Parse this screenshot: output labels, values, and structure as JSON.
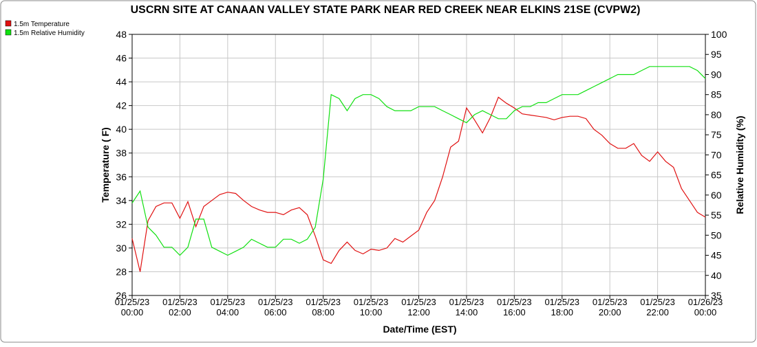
{
  "chart_data": {
    "type": "line",
    "title": "USCRN SITE AT CANAAN VALLEY STATE PARK NEAR RED CREEK NEAR ELKINS 21SE (CVPW2)",
    "xlabel": "Date/Time (EST)",
    "ylabel": "Temperature ( F)",
    "y2label": "Relative Humidity (%)",
    "x": [
      "01/25/23 00:00",
      "01/25/23 00:20",
      "01/25/23 00:40",
      "01/25/23 01:00",
      "01/25/23 01:20",
      "01/25/23 01:40",
      "01/25/23 02:00",
      "01/25/23 02:20",
      "01/25/23 02:40",
      "01/25/23 03:00",
      "01/25/23 03:20",
      "01/25/23 03:40",
      "01/25/23 04:00",
      "01/25/23 04:20",
      "01/25/23 04:40",
      "01/25/23 05:00",
      "01/25/23 05:20",
      "01/25/23 05:40",
      "01/25/23 06:00",
      "01/25/23 06:20",
      "01/25/23 06:40",
      "01/25/23 07:00",
      "01/25/23 07:20",
      "01/25/23 07:40",
      "01/25/23 08:00",
      "01/25/23 08:20",
      "01/25/23 08:40",
      "01/25/23 09:00",
      "01/25/23 09:20",
      "01/25/23 09:40",
      "01/25/23 10:00",
      "01/25/23 10:20",
      "01/25/23 10:40",
      "01/25/23 11:00",
      "01/25/23 11:20",
      "01/25/23 11:40",
      "01/25/23 12:00",
      "01/25/23 12:20",
      "01/25/23 12:40",
      "01/25/23 13:00",
      "01/25/23 13:20",
      "01/25/23 13:40",
      "01/25/23 14:00",
      "01/25/23 14:20",
      "01/25/23 14:40",
      "01/25/23 15:00",
      "01/25/23 15:20",
      "01/25/23 15:40",
      "01/25/23 16:00",
      "01/25/23 16:20",
      "01/25/23 16:40",
      "01/25/23 17:00",
      "01/25/23 17:20",
      "01/25/23 17:40",
      "01/25/23 18:00",
      "01/25/23 18:20",
      "01/25/23 18:40",
      "01/25/23 19:00",
      "01/25/23 19:20",
      "01/25/23 19:40",
      "01/25/23 20:00",
      "01/25/23 20:20",
      "01/25/23 20:40",
      "01/25/23 21:00",
      "01/25/23 21:20",
      "01/25/23 21:40",
      "01/25/23 22:00",
      "01/25/23 22:20",
      "01/25/23 22:40",
      "01/25/23 23:00",
      "01/25/23 23:20",
      "01/25/23 23:40",
      "01/26/23 00:00"
    ],
    "series": [
      {
        "name": "1.5m Temperature",
        "color": "#e01010",
        "values": [
          30.8,
          28.0,
          32.3,
          33.5,
          33.8,
          33.8,
          32.5,
          33.9,
          31.8,
          33.5,
          34.0,
          34.5,
          34.7,
          34.6,
          34.0,
          33.5,
          33.2,
          33.0,
          33.0,
          32.8,
          33.2,
          33.4,
          32.8,
          31.0,
          29.0,
          28.7,
          29.8,
          30.5,
          29.8,
          29.5,
          29.9,
          29.8,
          30.0,
          30.8,
          30.5,
          31.0,
          31.5,
          33.0,
          34.0,
          36.0,
          38.5,
          39.0,
          41.8,
          40.8,
          39.7,
          41.0,
          42.7,
          42.2,
          41.8,
          41.3,
          41.2,
          41.1,
          41.0,
          40.8,
          41.0,
          41.1,
          41.1,
          40.9,
          40.0,
          39.5,
          38.8,
          38.4,
          38.4,
          38.8,
          37.8,
          37.3,
          38.1,
          37.3,
          36.8,
          35.0,
          34.0,
          33.0,
          32.6
        ]
      },
      {
        "name": "1.5m Relative Humidity",
        "color": "#10e010",
        "axis": "y2",
        "values": [
          58,
          61,
          52,
          50,
          47,
          47,
          45,
          47,
          54,
          54,
          47,
          46,
          45,
          46,
          47,
          49,
          48,
          47,
          47,
          49,
          49,
          48,
          49,
          52,
          64,
          85,
          84,
          81,
          84,
          85,
          85,
          84,
          82,
          81,
          81,
          81,
          82,
          82,
          82,
          81,
          80,
          79,
          78,
          80,
          81,
          80,
          79,
          79,
          81,
          82,
          82,
          83,
          83,
          84,
          85,
          85,
          85,
          86,
          87,
          88,
          89,
          90,
          90,
          90,
          91,
          92,
          92,
          92,
          92,
          92,
          92,
          91,
          89
        ]
      }
    ],
    "xlim": [
      "01/25/23 00:00",
      "01/26/23 00:00"
    ],
    "xticks": [
      "01/25/23 00:00",
      "01/25/23 02:00",
      "01/25/23 04:00",
      "01/25/23 06:00",
      "01/25/23 08:00",
      "01/25/23 10:00",
      "01/25/23 12:00",
      "01/25/23 14:00",
      "01/25/23 16:00",
      "01/25/23 18:00",
      "01/25/23 20:00",
      "01/25/23 22:00",
      "01/26/23 00:00"
    ],
    "ylim": [
      26,
      48
    ],
    "yticks": [
      26,
      28,
      30,
      32,
      34,
      36,
      38,
      40,
      42,
      44,
      46,
      48
    ],
    "y2lim": [
      35,
      100
    ],
    "y2ticks": [
      35,
      40,
      45,
      50,
      55,
      60,
      65,
      70,
      75,
      80,
      85,
      90,
      95,
      100
    ],
    "grid": true
  }
}
